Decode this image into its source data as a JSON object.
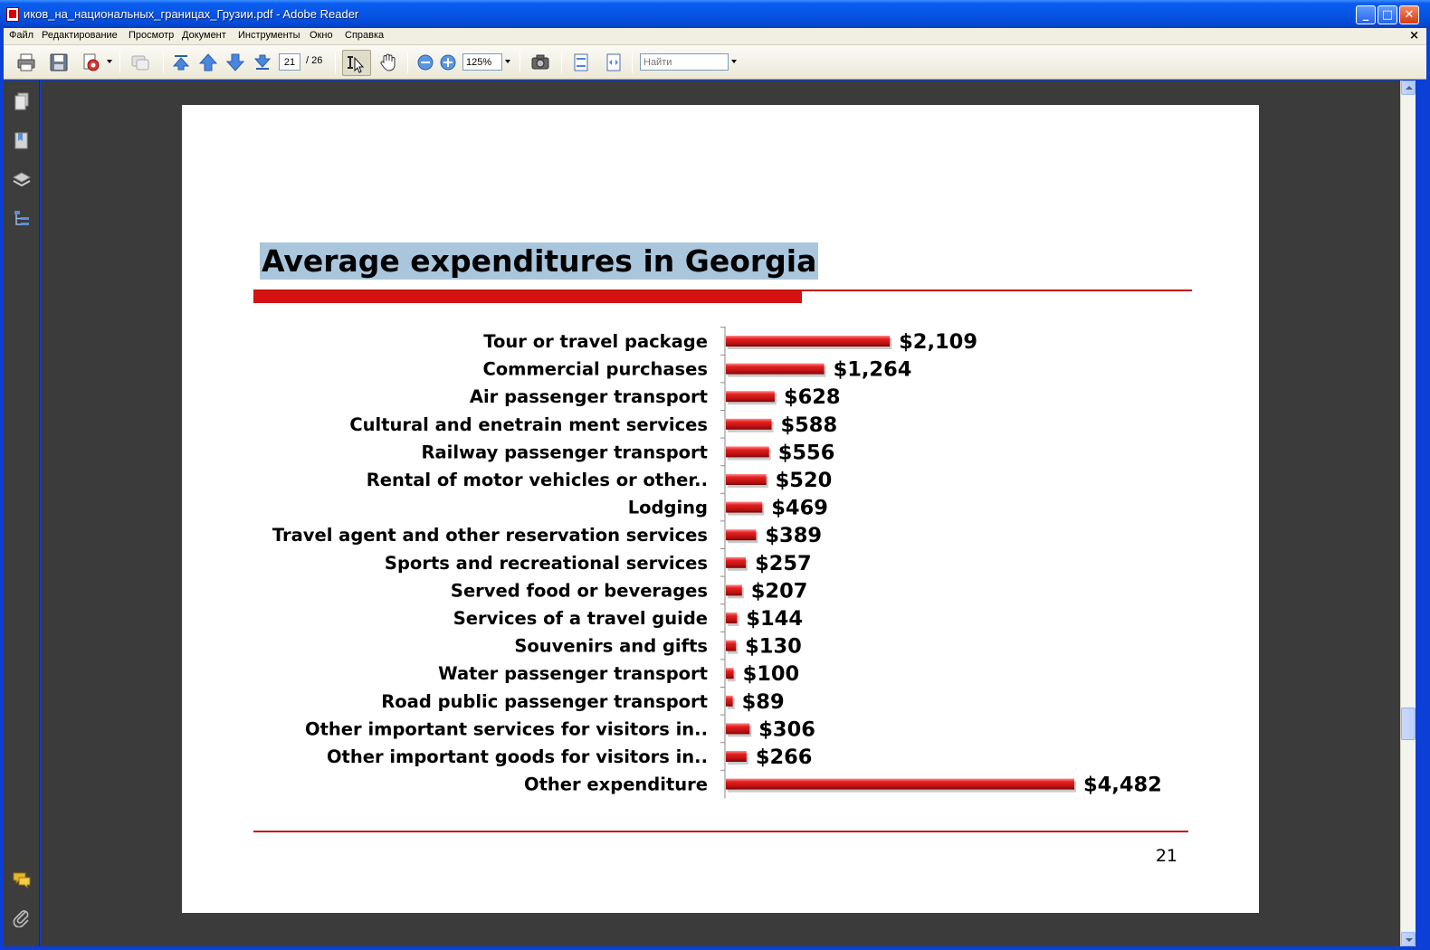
{
  "window": {
    "title": "иков_на_национальных_границах_Грузии.pdf - Adobe Reader",
    "minimize": "_",
    "maximize": "□",
    "close": "✕"
  },
  "menu": {
    "items": [
      "Файл",
      "Редактирование",
      "Просмотр",
      "Документ",
      "Инструменты",
      "Окно",
      "Справка"
    ],
    "close_glyph": "×"
  },
  "toolbar": {
    "current_page": "21",
    "page_separator": "/ 26",
    "zoom": "125%",
    "search_placeholder": "Найти"
  },
  "colors": {
    "bar": "#d01818",
    "title_highlight": "#a9c6dd",
    "accent_line": "#c01010",
    "doc_background": "#3b3b3b"
  },
  "icons": {
    "toolbar": [
      "print-icon",
      "save-icon",
      "create-pdf-icon",
      "collaborate-icon",
      "first-page-icon",
      "previous-page-icon",
      "next-page-icon",
      "last-page-icon",
      "select-tool-icon",
      "hand-tool-icon",
      "zoom-out-icon",
      "zoom-in-icon",
      "snapshot-icon",
      "fit-page-icon",
      "fit-width-icon"
    ],
    "navigation": [
      "pages-icon",
      "bookmarks-icon",
      "layers-icon",
      "model-tree-icon",
      "comments-icon",
      "attachments-icon"
    ]
  },
  "slide": {
    "title": "Average expenditures in Georgia",
    "page_number": "21"
  },
  "chart_data": {
    "type": "bar",
    "orientation": "horizontal",
    "title": "Average expenditures in Georgia",
    "categories": [
      "Tour or travel package",
      "Commercial purchases",
      "Air passenger transport",
      "Cultural and enetrain ment services",
      "Railway passenger transport",
      "Rental of motor vehicles or other..",
      "Lodging",
      "Travel agent and other reservation services",
      "Sports and recreational services",
      "Served food or beverages",
      "Services of a travel guide",
      "Souvenirs and gifts",
      "Water passenger transport",
      "Road public passenger transport",
      "Other important services for visitors in..",
      "Other important goods for visitors in..",
      "Other expenditure"
    ],
    "values": [
      2109,
      1264,
      628,
      588,
      556,
      520,
      469,
      389,
      257,
      207,
      144,
      130,
      100,
      89,
      306,
      266,
      4482
    ],
    "data_labels": [
      "$2,109",
      "$1,264",
      "$628",
      "$588",
      "$556",
      "$520",
      "$469",
      "$389",
      "$257",
      "$207",
      "$144",
      "$130",
      "$100",
      "$89",
      "$306",
      "$266",
      "$4,482"
    ],
    "xlim": [
      0,
      4482
    ],
    "grid": false,
    "legend": "none"
  }
}
